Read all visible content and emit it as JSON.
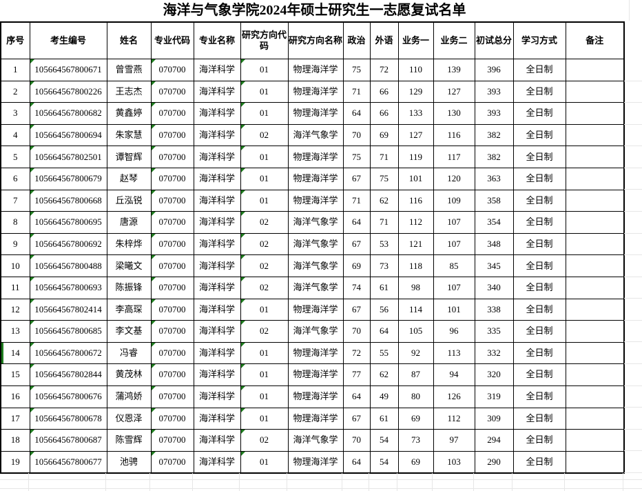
{
  "title": "海洋与气象学院2024年硕士研究生一志愿复试名单",
  "colors": {
    "border": "#000000",
    "accent_green": "#1f7d1f",
    "grid_faint": "#e6e6e6"
  },
  "table": {
    "columns": [
      {
        "key": "no",
        "label": "序号"
      },
      {
        "key": "candidate_id",
        "label": "考生编号"
      },
      {
        "key": "name",
        "label": "姓名"
      },
      {
        "key": "major_code",
        "label": "专业代码"
      },
      {
        "key": "major_name",
        "label": "专业名称"
      },
      {
        "key": "direction_code",
        "label": "研究方向代码"
      },
      {
        "key": "direction_name",
        "label": "研究方向名称"
      },
      {
        "key": "politics",
        "label": "政治"
      },
      {
        "key": "foreign_lang",
        "label": "外语"
      },
      {
        "key": "course1",
        "label": "业务一"
      },
      {
        "key": "course2",
        "label": "业务二"
      },
      {
        "key": "total",
        "label": "初试总分"
      },
      {
        "key": "study_mode",
        "label": "学习方式"
      },
      {
        "key": "note",
        "label": "备注"
      }
    ],
    "flag_columns": [
      "candidate_id",
      "major_code",
      "direction_code"
    ],
    "selected_row_no": "14",
    "rows": [
      {
        "no": "1",
        "candidate_id": "105664567800671",
        "name": "曾雪燕",
        "major_code": "070700",
        "major_name": "海洋科学",
        "direction_code": "01",
        "direction_name": "物理海洋学",
        "politics": "75",
        "foreign_lang": "72",
        "course1": "110",
        "course2": "139",
        "total": "396",
        "study_mode": "全日制",
        "note": ""
      },
      {
        "no": "2",
        "candidate_id": "105664567800226",
        "name": "王志杰",
        "major_code": "070700",
        "major_name": "海洋科学",
        "direction_code": "01",
        "direction_name": "物理海洋学",
        "politics": "71",
        "foreign_lang": "66",
        "course1": "129",
        "course2": "127",
        "total": "393",
        "study_mode": "全日制",
        "note": ""
      },
      {
        "no": "3",
        "candidate_id": "105664567800682",
        "name": "黄鑫婷",
        "major_code": "070700",
        "major_name": "海洋科学",
        "direction_code": "01",
        "direction_name": "物理海洋学",
        "politics": "64",
        "foreign_lang": "66",
        "course1": "133",
        "course2": "130",
        "total": "393",
        "study_mode": "全日制",
        "note": ""
      },
      {
        "no": "4",
        "candidate_id": "105664567800694",
        "name": "朱家慧",
        "major_code": "070700",
        "major_name": "海洋科学",
        "direction_code": "02",
        "direction_name": "海洋气象学",
        "politics": "70",
        "foreign_lang": "69",
        "course1": "127",
        "course2": "116",
        "total": "382",
        "study_mode": "全日制",
        "note": ""
      },
      {
        "no": "5",
        "candidate_id": "105664567802501",
        "name": "谭智辉",
        "major_code": "070700",
        "major_name": "海洋科学",
        "direction_code": "01",
        "direction_name": "物理海洋学",
        "politics": "75",
        "foreign_lang": "71",
        "course1": "119",
        "course2": "117",
        "total": "382",
        "study_mode": "全日制",
        "note": ""
      },
      {
        "no": "6",
        "candidate_id": "105664567800679",
        "name": "赵琴",
        "major_code": "070700",
        "major_name": "海洋科学",
        "direction_code": "01",
        "direction_name": "物理海洋学",
        "politics": "67",
        "foreign_lang": "75",
        "course1": "101",
        "course2": "120",
        "total": "363",
        "study_mode": "全日制",
        "note": ""
      },
      {
        "no": "7",
        "candidate_id": "105664567800668",
        "name": "丘泓锐",
        "major_code": "070700",
        "major_name": "海洋科学",
        "direction_code": "01",
        "direction_name": "物理海洋学",
        "politics": "71",
        "foreign_lang": "62",
        "course1": "116",
        "course2": "109",
        "total": "358",
        "study_mode": "全日制",
        "note": ""
      },
      {
        "no": "8",
        "candidate_id": "105664567800695",
        "name": "唐源",
        "major_code": "070700",
        "major_name": "海洋科学",
        "direction_code": "02",
        "direction_name": "海洋气象学",
        "politics": "64",
        "foreign_lang": "71",
        "course1": "112",
        "course2": "107",
        "total": "354",
        "study_mode": "全日制",
        "note": ""
      },
      {
        "no": "9",
        "candidate_id": "105664567800692",
        "name": "朱梓烨",
        "major_code": "070700",
        "major_name": "海洋科学",
        "direction_code": "02",
        "direction_name": "海洋气象学",
        "politics": "67",
        "foreign_lang": "53",
        "course1": "121",
        "course2": "107",
        "total": "348",
        "study_mode": "全日制",
        "note": ""
      },
      {
        "no": "10",
        "candidate_id": "105664567800488",
        "name": "梁曦文",
        "major_code": "070700",
        "major_name": "海洋科学",
        "direction_code": "02",
        "direction_name": "海洋气象学",
        "politics": "69",
        "foreign_lang": "73",
        "course1": "118",
        "course2": "85",
        "total": "345",
        "study_mode": "全日制",
        "note": ""
      },
      {
        "no": "11",
        "candidate_id": "105664567800693",
        "name": "陈振锋",
        "major_code": "070700",
        "major_name": "海洋科学",
        "direction_code": "02",
        "direction_name": "海洋气象学",
        "politics": "74",
        "foreign_lang": "61",
        "course1": "98",
        "course2": "107",
        "total": "340",
        "study_mode": "全日制",
        "note": ""
      },
      {
        "no": "12",
        "candidate_id": "105664567802414",
        "name": "李高琛",
        "major_code": "070700",
        "major_name": "海洋科学",
        "direction_code": "01",
        "direction_name": "物理海洋学",
        "politics": "67",
        "foreign_lang": "56",
        "course1": "114",
        "course2": "101",
        "total": "338",
        "study_mode": "全日制",
        "note": ""
      },
      {
        "no": "13",
        "candidate_id": "105664567800685",
        "name": "李文基",
        "major_code": "070700",
        "major_name": "海洋科学",
        "direction_code": "02",
        "direction_name": "海洋气象学",
        "politics": "70",
        "foreign_lang": "64",
        "course1": "105",
        "course2": "96",
        "total": "335",
        "study_mode": "全日制",
        "note": ""
      },
      {
        "no": "14",
        "candidate_id": "105664567800672",
        "name": "冯睿",
        "major_code": "070700",
        "major_name": "海洋科学",
        "direction_code": "01",
        "direction_name": "物理海洋学",
        "politics": "72",
        "foreign_lang": "55",
        "course1": "92",
        "course2": "113",
        "total": "332",
        "study_mode": "全日制",
        "note": ""
      },
      {
        "no": "15",
        "candidate_id": "105664567802844",
        "name": "黄茂林",
        "major_code": "070700",
        "major_name": "海洋科学",
        "direction_code": "01",
        "direction_name": "物理海洋学",
        "politics": "77",
        "foreign_lang": "62",
        "course1": "87",
        "course2": "94",
        "total": "320",
        "study_mode": "全日制",
        "note": ""
      },
      {
        "no": "16",
        "candidate_id": "105664567800676",
        "name": "蒲鸿娇",
        "major_code": "070700",
        "major_name": "海洋科学",
        "direction_code": "01",
        "direction_name": "物理海洋学",
        "politics": "64",
        "foreign_lang": "49",
        "course1": "80",
        "course2": "126",
        "total": "319",
        "study_mode": "全日制",
        "note": ""
      },
      {
        "no": "17",
        "candidate_id": "105664567800678",
        "name": "仪恩泽",
        "major_code": "070700",
        "major_name": "海洋科学",
        "direction_code": "01",
        "direction_name": "物理海洋学",
        "politics": "67",
        "foreign_lang": "61",
        "course1": "69",
        "course2": "112",
        "total": "309",
        "study_mode": "全日制",
        "note": ""
      },
      {
        "no": "18",
        "candidate_id": "105664567800687",
        "name": "陈雪辉",
        "major_code": "070700",
        "major_name": "海洋科学",
        "direction_code": "02",
        "direction_name": "海洋气象学",
        "politics": "70",
        "foreign_lang": "54",
        "course1": "73",
        "course2": "97",
        "total": "294",
        "study_mode": "全日制",
        "note": ""
      },
      {
        "no": "19",
        "candidate_id": "105664567800677",
        "name": "池骋",
        "major_code": "070700",
        "major_name": "海洋科学",
        "direction_code": "01",
        "direction_name": "物理海洋学",
        "politics": "64",
        "foreign_lang": "54",
        "course1": "69",
        "course2": "103",
        "total": "290",
        "study_mode": "全日制",
        "note": ""
      }
    ]
  }
}
